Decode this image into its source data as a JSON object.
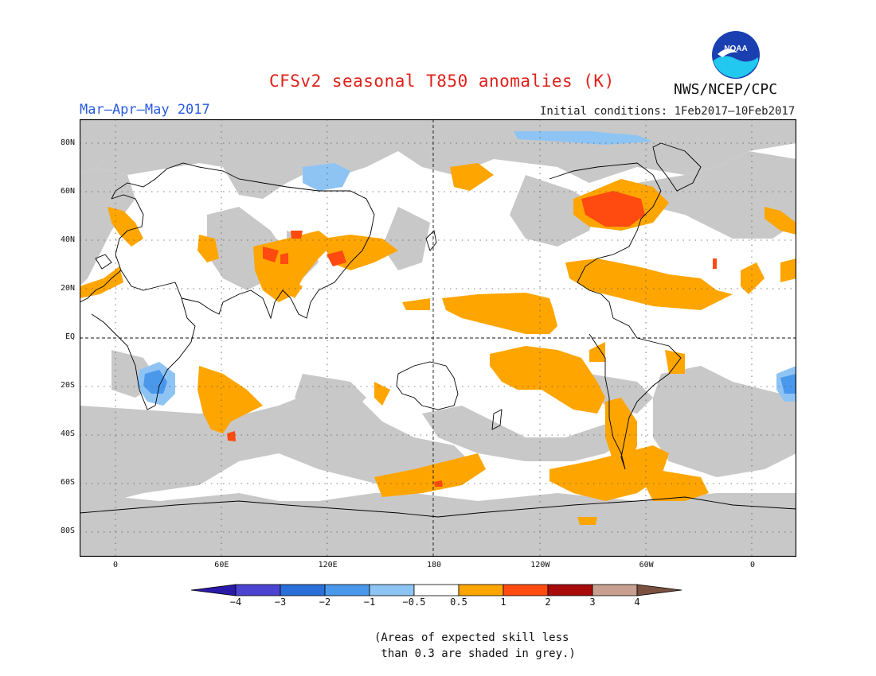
{
  "title": "CFSv2 seasonal T850 anomalies (K)",
  "season": "Mar–Apr–May 2017",
  "initial_conditions": "Initial conditions: 1Feb2017–10Feb2017",
  "agency": "NWS/NCEP/CPC",
  "logo_text": "NOAA",
  "lat_labels": [
    "80N",
    "60N",
    "40N",
    "20N",
    "EQ",
    "20S",
    "40S",
    "60S",
    "80S"
  ],
  "lat_values": [
    80,
    60,
    40,
    20,
    0,
    -20,
    -40,
    -60,
    -80
  ],
  "lon_labels": [
    "0",
    "60E",
    "120E",
    "180",
    "120W",
    "60W",
    "0"
  ],
  "lon_values": [
    0,
    60,
    120,
    180,
    240,
    300,
    360
  ],
  "colorbar": {
    "labels": [
      "−4",
      "−3",
      "−2",
      "−1",
      "−0.5",
      "0.5",
      "1",
      "2",
      "3",
      "4"
    ],
    "colors": [
      "#2a1aa8",
      "#4a44d0",
      "#2a6fd8",
      "#4a98ec",
      "#8ec4f4",
      "#ffffff",
      "#ffa500",
      "#ff4a10",
      "#a80a0a",
      "#c8a090",
      "#7a5040"
    ]
  },
  "note": "(Areas of expected skill less\n than 0.3 are shaded in grey.)",
  "colors": {
    "grey_low_skill": "#c8c8c8",
    "warm_0_5_1": "#ffa500",
    "warm_1_2": "#ff4a10",
    "cool_0_5_1": "#8ec4f4",
    "cool_1_2": "#4a98ec",
    "cool_2_3": "#2a6fd8"
  }
}
